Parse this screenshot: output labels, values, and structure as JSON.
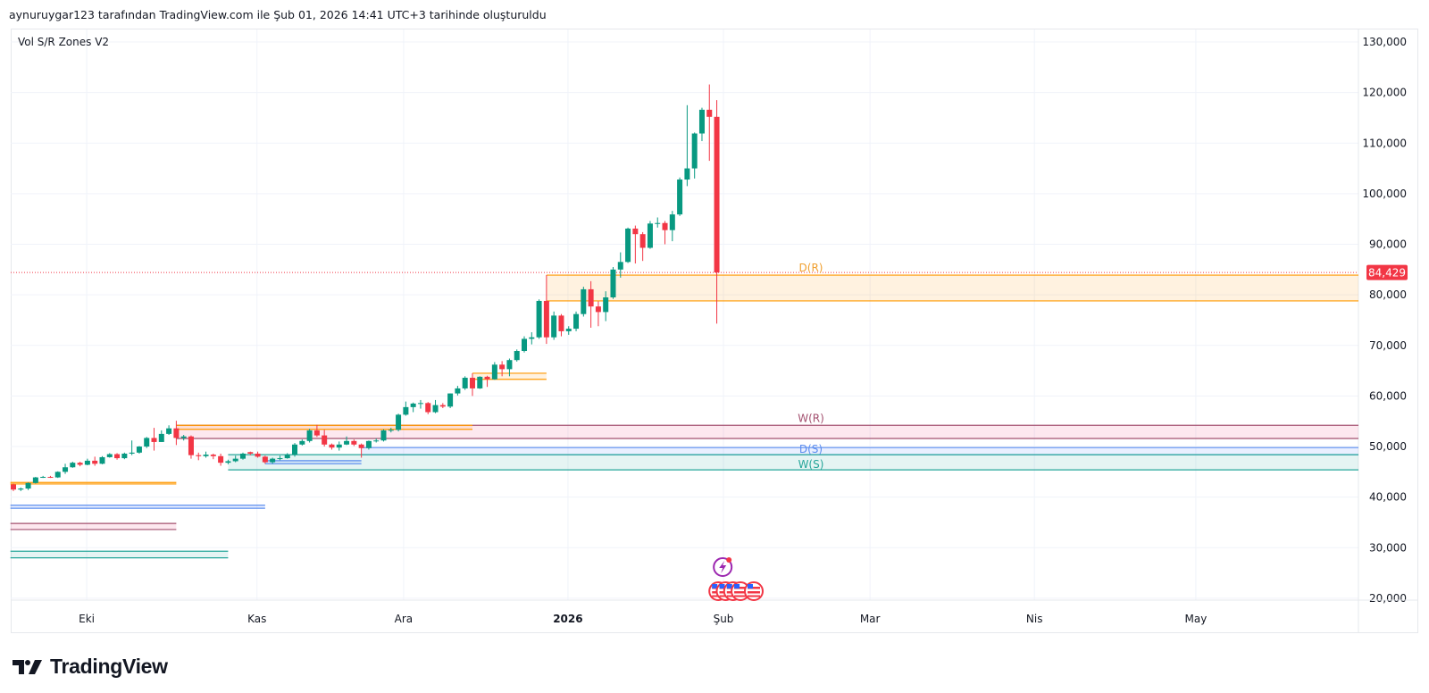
{
  "header": {
    "attribution": "aynuruygar123 tarafından TradingView.com ile Şub 01, 2026 14:41 UTC+3 tarihinde oluşturuldu"
  },
  "indicator": {
    "title": "Vol S/R Zones V2"
  },
  "logo": {
    "text": "TradingView"
  },
  "colors": {
    "up": "#089981",
    "down": "#f23645",
    "grid": "#f0f3fa",
    "last_price": "#f23645"
  },
  "chart_data": {
    "type": "candlestick",
    "title": "Vol S/R Zones V2",
    "ylim": [
      20000,
      130000
    ],
    "y_ticks": [
      "130,000",
      "120,000",
      "110,000",
      "100,000",
      "90,000",
      "80,000",
      "70,000",
      "60,000",
      "50,000",
      "40,000",
      "30,000",
      "20,000"
    ],
    "y_tick_values": [
      130,
      120,
      110,
      100,
      90,
      80,
      70,
      60,
      50,
      40,
      30,
      20
    ],
    "units": "thousands",
    "x_ticks": [
      {
        "label": "Eki",
        "bar": 9.9,
        "bold": false
      },
      {
        "label": "Kas",
        "bar": 32.9,
        "bold": false
      },
      {
        "label": "Ara",
        "bar": 52.7,
        "bold": false
      },
      {
        "label": "2026",
        "bar": 74.9,
        "bold": true
      },
      {
        "label": "Şub",
        "bar": 95.9,
        "bold": false
      },
      {
        "label": "Mar",
        "bar": 115.7,
        "bold": false
      },
      {
        "label": "Nis",
        "bar": 137.9,
        "bold": false
      },
      {
        "label": "May",
        "bar": 159.7,
        "bold": false
      }
    ],
    "last_price": {
      "value": 84.429,
      "label": "84,429"
    },
    "ohlc": [
      [
        42.5,
        42.7,
        41.2,
        41.5
      ],
      [
        41.5,
        41.9,
        41.2,
        41.7
      ],
      [
        41.7,
        42.9,
        41.4,
        42.8
      ],
      [
        42.8,
        44.0,
        42.7,
        43.9
      ],
      [
        43.9,
        44.2,
        43.8,
        44.0
      ],
      [
        44.0,
        44.2,
        43.8,
        43.9
      ],
      [
        43.9,
        45.1,
        43.8,
        45.0
      ],
      [
        45.0,
        46.6,
        44.6,
        45.9
      ],
      [
        45.9,
        47.0,
        45.8,
        46.8
      ],
      [
        46.8,
        47.0,
        46.1,
        46.4
      ],
      [
        46.4,
        47.6,
        46.3,
        47.2
      ],
      [
        47.2,
        48.0,
        46.2,
        46.6
      ],
      [
        46.6,
        48.1,
        46.5,
        47.9
      ],
      [
        47.9,
        48.7,
        47.8,
        48.5
      ],
      [
        48.5,
        48.7,
        47.4,
        47.7
      ],
      [
        47.7,
        48.8,
        47.5,
        48.6
      ],
      [
        48.6,
        51.2,
        48.3,
        48.8
      ],
      [
        48.8,
        50.1,
        48.6,
        50.0
      ],
      [
        50.0,
        51.9,
        49.7,
        51.7
      ],
      [
        51.7,
        53.7,
        49.2,
        50.9
      ],
      [
        50.9,
        53.2,
        50.9,
        52.5
      ],
      [
        52.5,
        54.2,
        52.3,
        53.6
      ],
      [
        53.6,
        55.1,
        50.3,
        51.7
      ],
      [
        51.7,
        52.3,
        51.2,
        52.0
      ],
      [
        52.0,
        52.2,
        47.6,
        48.3
      ],
      [
        48.3,
        48.8,
        47.3,
        48.1
      ],
      [
        48.1,
        49.0,
        47.8,
        48.4
      ],
      [
        48.4,
        48.6,
        47.5,
        48.1
      ],
      [
        48.1,
        48.6,
        46.2,
        46.8
      ],
      [
        46.8,
        47.4,
        46.5,
        47.1
      ],
      [
        47.1,
        48.2,
        46.9,
        47.6
      ],
      [
        47.6,
        48.8,
        47.4,
        48.6
      ],
      [
        48.9,
        49.0,
        48.3,
        48.6
      ],
      [
        48.6,
        49.0,
        47.8,
        48.0
      ],
      [
        48.0,
        48.2,
        46.6,
        46.9
      ],
      [
        46.9,
        47.8,
        46.6,
        47.6
      ],
      [
        47.6,
        48.2,
        47.3,
        47.7
      ],
      [
        47.7,
        48.7,
        47.6,
        48.4
      ],
      [
        48.4,
        50.7,
        48.0,
        50.4
      ],
      [
        50.4,
        51.4,
        50.2,
        51.1
      ],
      [
        51.1,
        53.5,
        50.8,
        53.2
      ],
      [
        53.2,
        54.3,
        51.9,
        52.2
      ],
      [
        52.2,
        53.3,
        50.0,
        50.4
      ],
      [
        50.4,
        50.6,
        49.4,
        49.8
      ],
      [
        49.8,
        51.0,
        49.2,
        50.4
      ],
      [
        50.4,
        52.0,
        50.3,
        51.1
      ],
      [
        51.1,
        51.4,
        50.1,
        50.4
      ],
      [
        50.4,
        50.6,
        47.8,
        49.7
      ],
      [
        49.7,
        51.2,
        49.4,
        51.1
      ],
      [
        51.1,
        51.6,
        50.8,
        51.2
      ],
      [
        51.2,
        53.4,
        51.0,
        53.2
      ],
      [
        53.2,
        53.7,
        52.8,
        53.3
      ],
      [
        53.3,
        56.5,
        53.0,
        56.3
      ],
      [
        56.3,
        58.9,
        56.1,
        57.8
      ],
      [
        57.8,
        58.7,
        56.8,
        58.5
      ],
      [
        58.5,
        59.2,
        57.5,
        58.6
      ],
      [
        58.6,
        58.8,
        56.4,
        56.8
      ],
      [
        56.8,
        59.2,
        56.6,
        58.2
      ],
      [
        58.2,
        58.6,
        57.6,
        57.9
      ],
      [
        57.9,
        60.5,
        57.6,
        60.5
      ],
      [
        60.5,
        62.0,
        60.1,
        61.5
      ],
      [
        61.5,
        63.9,
        61.2,
        63.6
      ],
      [
        63.6,
        64.5,
        60.0,
        61.5
      ],
      [
        61.5,
        63.9,
        61.4,
        63.8
      ],
      [
        63.8,
        64.0,
        61.8,
        63.3
      ],
      [
        63.3,
        66.7,
        63.2,
        66.2
      ],
      [
        66.2,
        66.9,
        63.9,
        65.3
      ],
      [
        65.3,
        67.4,
        63.9,
        67.1
      ],
      [
        67.1,
        69.2,
        66.8,
        68.9
      ],
      [
        68.9,
        71.8,
        68.6,
        71.3
      ],
      [
        71.3,
        72.6,
        70.2,
        71.6
      ],
      [
        71.6,
        79.1,
        71.3,
        78.8
      ],
      [
        78.8,
        83.9,
        70.3,
        71.6
      ],
      [
        71.6,
        76.7,
        71.1,
        75.9
      ],
      [
        75.9,
        76.2,
        71.8,
        72.8
      ],
      [
        72.8,
        73.8,
        72.1,
        73.3
      ],
      [
        73.3,
        76.7,
        72.8,
        76.2
      ],
      [
        76.2,
        81.6,
        75.7,
        81.1
      ],
      [
        81.1,
        82.7,
        73.5,
        77.7
      ],
      [
        77.7,
        78.7,
        73.8,
        76.6
      ],
      [
        76.6,
        80.7,
        74.8,
        79.5
      ],
      [
        79.5,
        85.5,
        79.2,
        85.0
      ],
      [
        85.0,
        88.4,
        83.4,
        86.5
      ],
      [
        86.5,
        93.3,
        86.3,
        93.1
      ],
      [
        93.1,
        93.7,
        86.2,
        92.0
      ],
      [
        92.0,
        92.4,
        86.7,
        89.3
      ],
      [
        89.3,
        94.6,
        89.1,
        94.1
      ],
      [
        94.1,
        95.3,
        93.3,
        94.2
      ],
      [
        94.2,
        94.6,
        90.0,
        92.8
      ],
      [
        92.8,
        96.6,
        90.6,
        95.9
      ],
      [
        95.9,
        103.2,
        95.6,
        102.8
      ],
      [
        102.8,
        117.5,
        101.5,
        105.0
      ],
      [
        105.0,
        112.1,
        103.0,
        111.9
      ],
      [
        111.9,
        117.0,
        110.4,
        116.6
      ],
      [
        116.6,
        121.6,
        106.5,
        115.2
      ],
      [
        115.2,
        118.5,
        74.3,
        84.429
      ]
    ],
    "zones": [
      {
        "label": "D(R)",
        "top": 83.9,
        "bottom": 78.8,
        "start_bar": 72,
        "end_bar": null,
        "line": "#ff9800",
        "fill": "rgba(255,152,0,0.12)",
        "text": "#f0a030"
      },
      {
        "label": "W(R)",
        "top": 54.2,
        "bottom": 51.6,
        "start_bar": 22,
        "end_bar": null,
        "line": "#a3506f",
        "fill": "rgba(233,30,99,0.10)",
        "text": "#a3506f"
      },
      {
        "label": "D(S)",
        "top": 49.8,
        "bottom": 48.4,
        "start_bar": 47,
        "end_bar": null,
        "line": "#5b8def",
        "fill": "rgba(41,98,255,0.10)",
        "text": "#5b8def"
      },
      {
        "label": "W(S)",
        "top": 48.4,
        "bottom": 45.4,
        "start_bar": 29,
        "end_bar": null,
        "line": "#26a69a",
        "fill": "rgba(0,150,136,0.10)",
        "text": "#26a69a"
      },
      {
        "label": "",
        "top": 64.5,
        "bottom": 63.3,
        "start_bar": 62,
        "end_bar": 72,
        "line": "#ff9800",
        "fill": "rgba(255,152,0,0.12)"
      },
      {
        "label": "",
        "top": 54.2,
        "bottom": 53.4,
        "start_bar": 22,
        "end_bar": 62,
        "line": "#ff9800",
        "fill": "rgba(255,152,0,0.12)"
      },
      {
        "label": "",
        "top": 47.2,
        "bottom": 46.6,
        "start_bar": 34,
        "end_bar": 47,
        "line": "#5b8def",
        "fill": "rgba(41,98,255,0.10)"
      },
      {
        "label": "",
        "top": 42.9,
        "bottom": 42.6,
        "start_bar": -0.4,
        "end_bar": 22,
        "line": "#ff9800",
        "fill": "rgba(255,152,0,0.12)"
      },
      {
        "label": "",
        "top": 38.4,
        "bottom": 37.8,
        "start_bar": -0.4,
        "end_bar": 34,
        "line": "#5b8def",
        "fill": "rgba(41,98,255,0.10)"
      },
      {
        "label": "",
        "top": 34.8,
        "bottom": 33.6,
        "start_bar": -0.4,
        "end_bar": 22,
        "line": "#a3506f",
        "fill": "rgba(233,30,99,0.10)"
      },
      {
        "label": "",
        "top": 29.3,
        "bottom": 28.0,
        "start_bar": -0.4,
        "end_bar": 29,
        "line": "#26a69a",
        "fill": "rgba(0,150,136,0.10)"
      }
    ],
    "events": [
      {
        "type": "lightning-event",
        "bar": 95.8
      },
      {
        "type": "us-flag-event",
        "bar": 95.2
      },
      {
        "type": "us-flag-event",
        "bar": 96.2
      },
      {
        "type": "us-flag-event",
        "bar": 97.2
      },
      {
        "type": "us-flag-event",
        "bar": 98.2
      },
      {
        "type": "us-flag-event",
        "bar": 100.0
      }
    ]
  }
}
